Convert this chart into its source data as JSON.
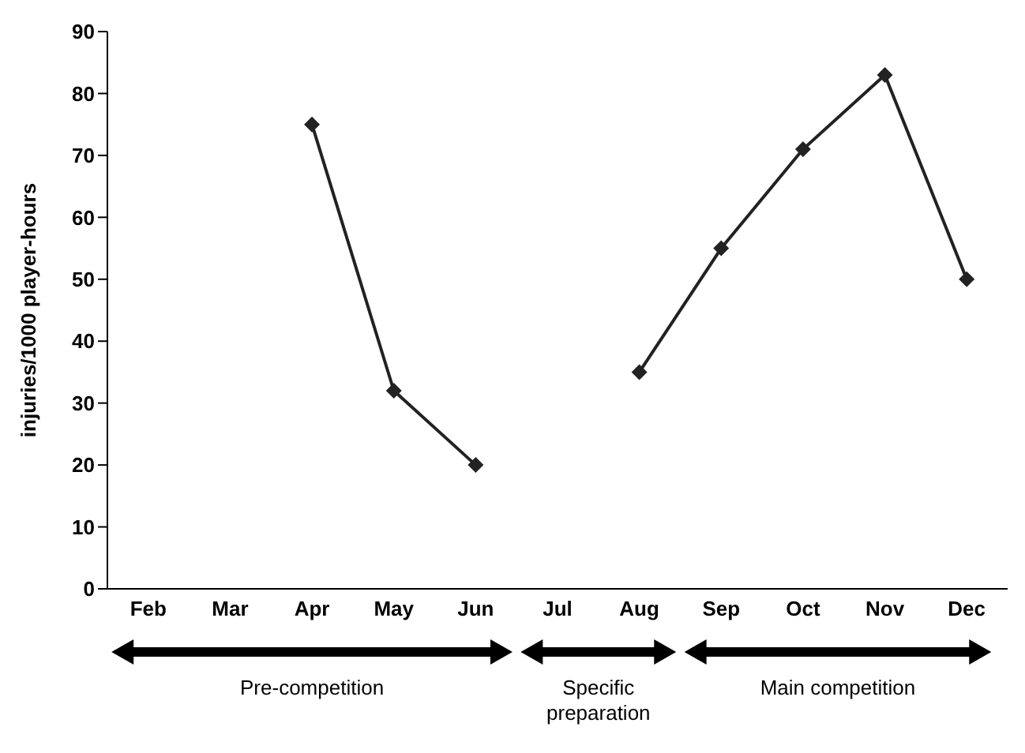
{
  "chart_data": {
    "type": "line",
    "ylabel": "injuries/1000 player-hours",
    "categories": [
      "Feb",
      "Mar",
      "Apr",
      "May",
      "Jun",
      "Jul",
      "Aug",
      "Sep",
      "Oct",
      "Nov",
      "Dec"
    ],
    "series": [
      {
        "color": "#222222",
        "values": [
          null,
          null,
          75,
          32,
          20,
          null,
          35,
          55,
          71,
          83,
          50
        ]
      }
    ],
    "ylim": [
      0,
      90
    ],
    "yticks": [
      0,
      10,
      20,
      30,
      40,
      50,
      60,
      70,
      80,
      90
    ],
    "marker": "diamond",
    "line_style": "solid",
    "annotations": [
      "Pre-competition",
      "Specific preparation",
      "Main competition"
    ]
  }
}
